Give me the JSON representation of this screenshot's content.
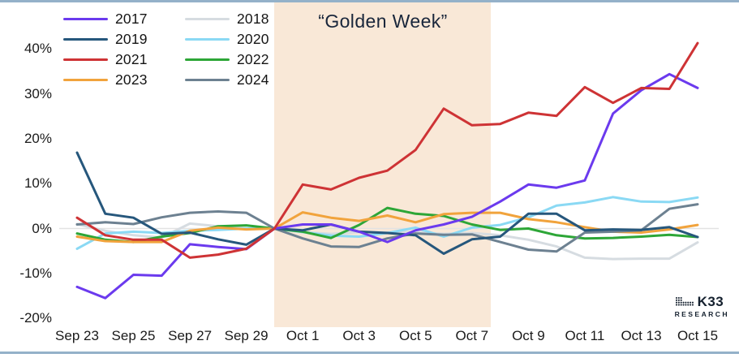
{
  "chart_data": {
    "type": "line",
    "annotation": "“Golden Week”",
    "legend_position": "top-left",
    "grid": "zero-line-only",
    "band": {
      "label": "Golden Week shaded region",
      "from": "Sep 30",
      "to": "Oct 7",
      "color": "#F9E8D7"
    },
    "x_labels": [
      "Sep 23",
      "Sep 24",
      "Sep 25",
      "Sep 26",
      "Sep 27",
      "Sep 28",
      "Sep 29",
      "Sep 30",
      "Oct 1",
      "Oct 2",
      "Oct 3",
      "Oct 4",
      "Oct 5",
      "Oct 6",
      "Oct 7",
      "Oct 8",
      "Oct 9",
      "Oct 10",
      "Oct 11",
      "Oct 12",
      "Oct 13",
      "Oct 14",
      "Oct 15"
    ],
    "x_tick_labels_shown": [
      "Sep 23",
      "Sep 25",
      "Sep 27",
      "Sep 29",
      "Oct 1",
      "Oct 3",
      "Oct 5",
      "Oct 7",
      "Oct 9",
      "Oct 11",
      "Oct 13",
      "Oct 15"
    ],
    "y_ticks": [
      {
        "label": "40%",
        "value": 40
      },
      {
        "label": "30%",
        "value": 30
      },
      {
        "label": "20%",
        "value": 20
      },
      {
        "label": "10%",
        "value": 10
      },
      {
        "label": "0%",
        "value": 0
      },
      {
        "label": "-10%",
        "value": -10
      },
      {
        "label": "-20%",
        "value": -20
      }
    ],
    "ylim": [
      -20,
      42
    ],
    "unit": "percent",
    "series": [
      {
        "name": "2017",
        "color": "#6B3AEE",
        "values": [
          -13,
          -15.5,
          -10.3,
          -10.5,
          -3.5,
          -4.1,
          -4.6,
          0,
          0.9,
          0.9,
          -0.7,
          -3,
          -0.4,
          0.9,
          2.6,
          6,
          9.8,
          9.1,
          10.7,
          25.6,
          30.8,
          34.4,
          31.3
        ]
      },
      {
        "name": "2018",
        "color": "#D6DCE1",
        "values": [
          1,
          -0.5,
          -1.5,
          -2,
          1.1,
          0.5,
          0,
          0,
          -0.8,
          -1.2,
          -0.8,
          -0.9,
          -0.8,
          -1.2,
          -1,
          -1.5,
          -2.5,
          -4,
          -6.5,
          -6.8,
          -6.7,
          -6.7,
          -3.1
        ]
      },
      {
        "name": "2019",
        "color": "#26577C",
        "values": [
          16.9,
          3.3,
          2.4,
          -1.2,
          -0.9,
          -2.4,
          -3.6,
          0,
          -0.4,
          0.9,
          -0.7,
          -1,
          -1.5,
          -5.6,
          -2.4,
          -1.8,
          3.3,
          3.3,
          -0.4,
          -0.2,
          -0.3,
          0.3,
          -1.9
        ]
      },
      {
        "name": "2020",
        "color": "#8AD9F4",
        "values": [
          -4.5,
          -1.1,
          -0.7,
          -1,
          -0.5,
          -0.3,
          0,
          0,
          -0.8,
          -1.6,
          -1.8,
          -1,
          0.2,
          -1.8,
          0.2,
          0.8,
          2.5,
          5.1,
          5.8,
          7,
          6,
          5.9,
          6.9
        ]
      },
      {
        "name": "2021",
        "color": "#CE3335",
        "values": [
          2.4,
          -1.5,
          -2.5,
          -2.5,
          -6.5,
          -5.8,
          -4.5,
          0,
          9.8,
          8.7,
          11.3,
          12.9,
          17.5,
          26.7,
          23,
          23.3,
          25.8,
          25.1,
          31.5,
          28,
          31.3,
          31.1,
          41.3
        ]
      },
      {
        "name": "2022",
        "color": "#2DA637",
        "values": [
          -1.1,
          -2.5,
          -3,
          -1.8,
          -1,
          0.5,
          0.7,
          0,
          -0.7,
          -2.1,
          0.8,
          4.6,
          3.3,
          2.8,
          0.9,
          -0.3,
          0,
          -1.5,
          -2.2,
          -2.1,
          -1.8,
          -1.4,
          -1.9
        ]
      },
      {
        "name": "2023",
        "color": "#F1A33C",
        "values": [
          -1.8,
          -2.8,
          -3,
          -3,
          -0.5,
          0.2,
          -0.2,
          0,
          3.6,
          2.4,
          1.7,
          2.9,
          1.4,
          3.2,
          3.5,
          3.5,
          2.1,
          1.4,
          0.3,
          -0.7,
          -0.9,
          -0.2,
          0.8
        ]
      },
      {
        "name": "2024",
        "color": "#6D8191",
        "values": [
          0.9,
          1.4,
          1,
          2.5,
          3.5,
          3.8,
          3.5,
          0,
          -2.2,
          -4,
          -4.1,
          -2.2,
          -1.1,
          -1.4,
          -1.3,
          -3,
          -4.7,
          -5.1,
          -0.9,
          -0.7,
          -0.4,
          4.4,
          5.4
        ]
      }
    ],
    "colors": {
      "band": "#F9E8D7",
      "frame_border": "#94B1C9",
      "zero_line": "#E2E2E2",
      "title_text": "#19263B",
      "axis_text": "#1A1A1A",
      "logo_text": "#14202E"
    }
  },
  "logo": {
    "brand": "K33",
    "sub": "RESEARCH"
  }
}
